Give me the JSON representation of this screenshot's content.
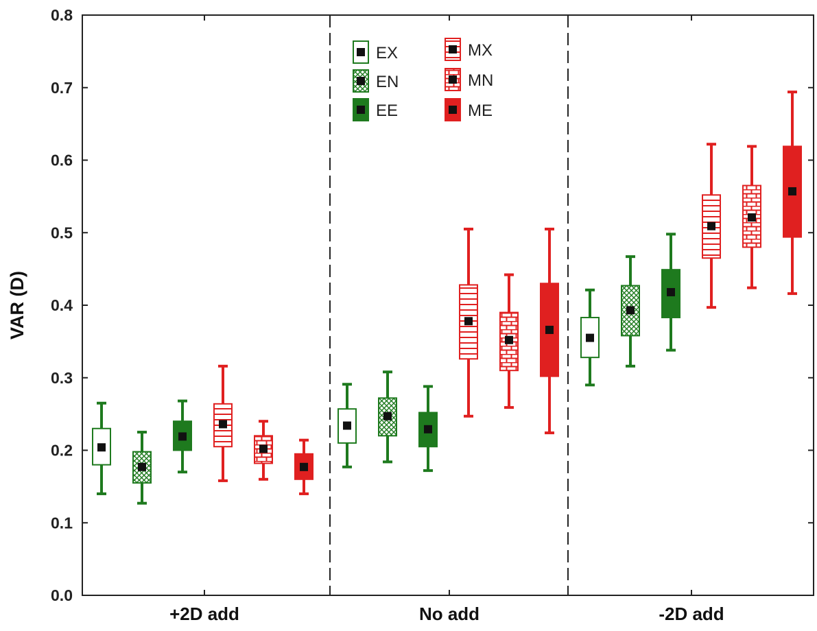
{
  "chart_data": {
    "type": "boxplot",
    "title": "",
    "xlabel": "",
    "ylabel": "VAR (D)",
    "ylim": [
      0.0,
      0.8
    ],
    "yticks": [
      "0.0",
      "0.1",
      "0.2",
      "0.3",
      "0.4",
      "0.5",
      "0.6",
      "0.7",
      "0.8"
    ],
    "categories": [
      "+2D add",
      "No add",
      "-2D add"
    ],
    "legend_position": "top-center",
    "grid": false,
    "series": [
      {
        "name": "EX",
        "color": "#1e7a1e",
        "fill": "none",
        "boxes": [
          {
            "min": 0.14,
            "q1": 0.18,
            "median": 0.204,
            "q3": 0.23,
            "max": 0.265
          },
          {
            "min": 0.177,
            "q1": 0.21,
            "median": 0.234,
            "q3": 0.257,
            "max": 0.291
          },
          {
            "min": 0.29,
            "q1": 0.328,
            "median": 0.355,
            "q3": 0.383,
            "max": 0.421
          }
        ]
      },
      {
        "name": "EN",
        "color": "#1e7a1e",
        "fill": "crosshatch",
        "boxes": [
          {
            "min": 0.127,
            "q1": 0.155,
            "median": 0.177,
            "q3": 0.198,
            "max": 0.225
          },
          {
            "min": 0.184,
            "q1": 0.22,
            "median": 0.247,
            "q3": 0.272,
            "max": 0.308
          },
          {
            "min": 0.316,
            "q1": 0.358,
            "median": 0.393,
            "q3": 0.427,
            "max": 0.467
          }
        ]
      },
      {
        "name": "EE",
        "color": "#1e7a1e",
        "fill": "solid",
        "boxes": [
          {
            "min": 0.17,
            "q1": 0.2,
            "median": 0.219,
            "q3": 0.24,
            "max": 0.268
          },
          {
            "min": 0.172,
            "q1": 0.205,
            "median": 0.229,
            "q3": 0.252,
            "max": 0.288
          },
          {
            "min": 0.338,
            "q1": 0.383,
            "median": 0.418,
            "q3": 0.449,
            "max": 0.498
          }
        ]
      },
      {
        "name": "MX",
        "color": "#e02020",
        "fill": "horizontal-lines",
        "boxes": [
          {
            "min": 0.158,
            "q1": 0.205,
            "median": 0.236,
            "q3": 0.264,
            "max": 0.316
          },
          {
            "min": 0.247,
            "q1": 0.326,
            "median": 0.378,
            "q3": 0.428,
            "max": 0.505
          },
          {
            "min": 0.397,
            "q1": 0.465,
            "median": 0.509,
            "q3": 0.552,
            "max": 0.622
          }
        ]
      },
      {
        "name": "MN",
        "color": "#e02020",
        "fill": "bricks",
        "boxes": [
          {
            "min": 0.16,
            "q1": 0.182,
            "median": 0.202,
            "q3": 0.22,
            "max": 0.24
          },
          {
            "min": 0.259,
            "q1": 0.31,
            "median": 0.352,
            "q3": 0.39,
            "max": 0.442
          },
          {
            "min": 0.424,
            "q1": 0.48,
            "median": 0.521,
            "q3": 0.565,
            "max": 0.619
          }
        ]
      },
      {
        "name": "ME",
        "color": "#e02020",
        "fill": "solid",
        "boxes": [
          {
            "min": 0.14,
            "q1": 0.16,
            "median": 0.177,
            "q3": 0.195,
            "max": 0.214
          },
          {
            "min": 0.224,
            "q1": 0.302,
            "median": 0.366,
            "q3": 0.43,
            "max": 0.505
          },
          {
            "min": 0.416,
            "q1": 0.494,
            "median": 0.557,
            "q3": 0.619,
            "max": 0.694
          }
        ]
      }
    ]
  }
}
